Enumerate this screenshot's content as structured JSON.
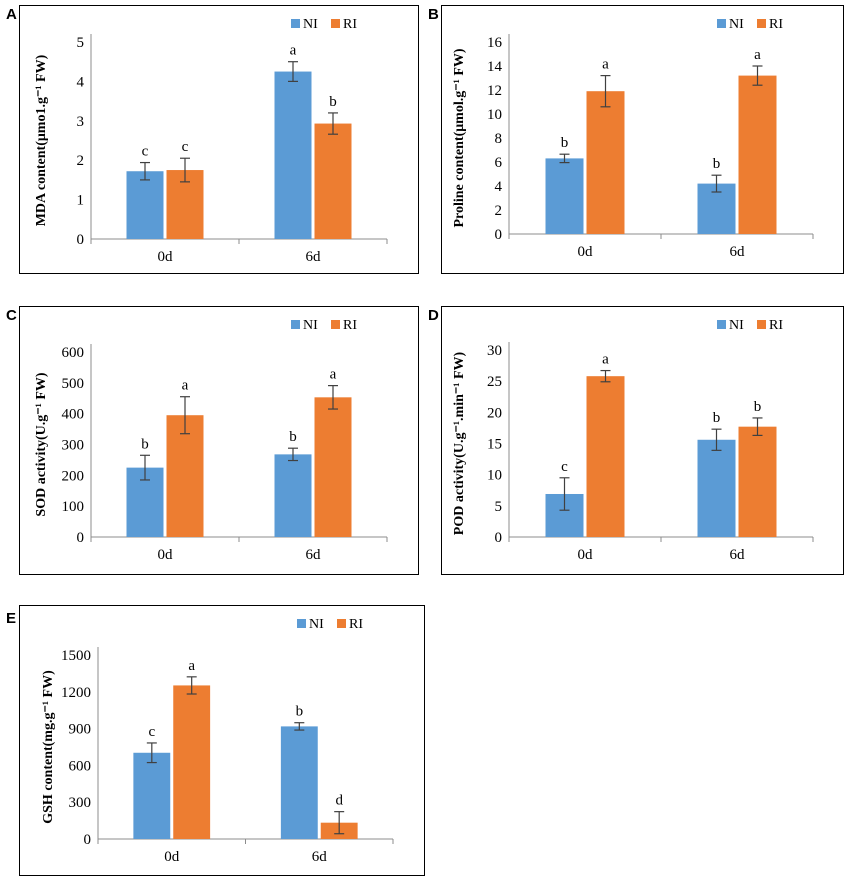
{
  "colors": {
    "NI": "#5b9bd5",
    "RI": "#ed7d31",
    "axis": "#8c8c8c",
    "error": "#404040"
  },
  "legend": [
    "NI",
    "RI"
  ],
  "panels": [
    {
      "letter": "A"
    },
    {
      "letter": "B"
    },
    {
      "letter": "C"
    },
    {
      "letter": "D"
    },
    {
      "letter": "E"
    }
  ],
  "chart_data": [
    {
      "type": "bar",
      "title": "",
      "ylabel": "MDA content(μmo1.g⁻¹ FW)",
      "xlabel": "",
      "categories": [
        "0d",
        "6d"
      ],
      "ylim": [
        0,
        5
      ],
      "yticks": [
        0,
        1,
        2,
        3,
        4,
        5
      ],
      "series": [
        {
          "name": "NI",
          "values": [
            1.72,
            4.25
          ],
          "errors": [
            0.22,
            0.25
          ],
          "labels": [
            "c",
            "a"
          ]
        },
        {
          "name": "RI",
          "values": [
            1.75,
            2.93
          ],
          "errors": [
            0.3,
            0.27
          ],
          "labels": [
            "c",
            "b"
          ]
        }
      ]
    },
    {
      "type": "bar",
      "title": "",
      "ylabel": "Proline content(μmol.g⁻¹ FW)",
      "xlabel": "",
      "categories": [
        "0d",
        "6d"
      ],
      "ylim": [
        0,
        16
      ],
      "yticks": [
        0,
        2,
        4,
        6,
        8,
        10,
        12,
        14,
        16
      ],
      "series": [
        {
          "name": "NI",
          "values": [
            6.3,
            4.2
          ],
          "errors": [
            0.35,
            0.7
          ],
          "labels": [
            "b",
            "b"
          ]
        },
        {
          "name": "RI",
          "values": [
            11.9,
            13.2
          ],
          "errors": [
            1.3,
            0.8
          ],
          "labels": [
            "a",
            "a"
          ]
        }
      ]
    },
    {
      "type": "bar",
      "title": "",
      "ylabel": "SOD activity(U.g⁻¹ FW)",
      "xlabel": "",
      "categories": [
        "0d",
        "6d"
      ],
      "ylim": [
        0,
        600
      ],
      "yticks": [
        0,
        100,
        200,
        300,
        400,
        500,
        600
      ],
      "series": [
        {
          "name": "NI",
          "values": [
            225,
            268
          ],
          "errors": [
            40,
            20
          ],
          "labels": [
            "b",
            "b"
          ]
        },
        {
          "name": "RI",
          "values": [
            395,
            453
          ],
          "errors": [
            60,
            38
          ],
          "labels": [
            "a",
            "a"
          ]
        }
      ]
    },
    {
      "type": "bar",
      "title": "",
      "ylabel": "POD activity(U.g⁻¹.min⁻¹ FW)",
      "xlabel": "",
      "categories": [
        "0d",
        "6d"
      ],
      "ylim": [
        0,
        30
      ],
      "yticks": [
        0,
        5,
        10,
        15,
        20,
        25,
        30
      ],
      "series": [
        {
          "name": "NI",
          "values": [
            6.9,
            15.6
          ],
          "errors": [
            2.6,
            1.7
          ],
          "labels": [
            "c",
            "b"
          ]
        },
        {
          "name": "RI",
          "values": [
            25.8,
            17.7
          ],
          "errors": [
            0.9,
            1.4
          ],
          "labels": [
            "a",
            "b"
          ]
        }
      ]
    },
    {
      "type": "bar",
      "title": "",
      "ylabel": "GSH content(mg.g⁻¹ FW)",
      "xlabel": "",
      "categories": [
        "0d",
        "6d"
      ],
      "ylim": [
        0,
        1500
      ],
      "yticks": [
        0,
        300,
        600,
        900,
        1200,
        1500
      ],
      "series": [
        {
          "name": "NI",
          "values": [
            703,
            918
          ],
          "errors": [
            80,
            30
          ],
          "labels": [
            "c",
            "b"
          ]
        },
        {
          "name": "RI",
          "values": [
            1252,
            133
          ],
          "errors": [
            70,
            90
          ],
          "labels": [
            "a",
            "d"
          ]
        }
      ]
    }
  ]
}
